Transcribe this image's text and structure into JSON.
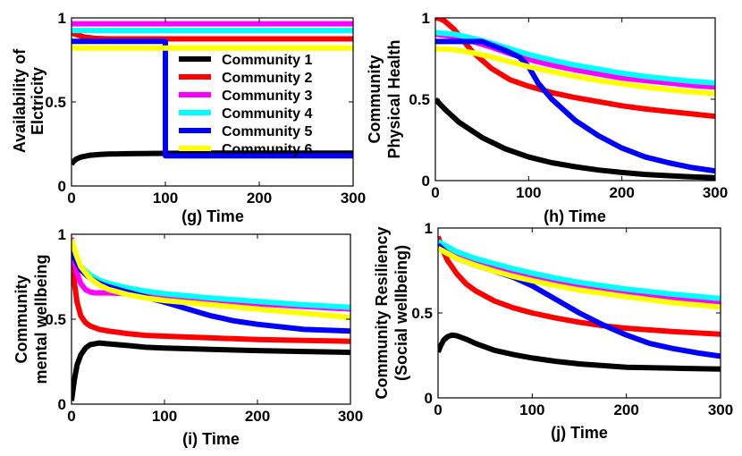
{
  "chart_data": [
    {
      "type": "line",
      "xlabel": "(g) Time",
      "ylabel": "Availability of Elctricity",
      "ylabel_lines": [
        "Availability of",
        "Elctricity"
      ],
      "xlim": [
        0,
        300
      ],
      "ylim": [
        0,
        1
      ],
      "xticks": [
        0,
        100,
        200,
        300
      ],
      "yticks": [
        0,
        0.5,
        1
      ],
      "yticklabels": [
        "0",
        "0.5",
        "1"
      ],
      "grid": false,
      "legend": {
        "placement": "center-right",
        "entries": [
          "Community 1",
          "Community 2",
          "Community 3",
          "Community 4",
          "Community 5",
          "Community 6"
        ]
      },
      "series": [
        {
          "name": "Community 1",
          "color": "#000000",
          "x": [
            0,
            2,
            5,
            10,
            20,
            30,
            40,
            60,
            100,
            150,
            200,
            300
          ],
          "y": [
            0.13,
            0.145,
            0.16,
            0.172,
            0.183,
            0.188,
            0.19,
            0.192,
            0.194,
            0.195,
            0.195,
            0.195
          ]
        },
        {
          "name": "Community 2",
          "color": "#ff0000",
          "x": [
            0,
            3,
            8,
            15,
            25,
            40,
            300
          ],
          "y": [
            0.91,
            0.905,
            0.895,
            0.885,
            0.878,
            0.875,
            0.875
          ]
        },
        {
          "name": "Community 3",
          "color": "#ff00ff",
          "x": [
            0,
            300
          ],
          "y": [
            0.965,
            0.965
          ]
        },
        {
          "name": "Community 4",
          "color": "#00ffff",
          "x": [
            0,
            300
          ],
          "y": [
            0.925,
            0.925
          ]
        },
        {
          "name": "Community 5",
          "color": "#0000ff",
          "x": [
            0,
            100,
            100,
            300
          ],
          "y": [
            0.86,
            0.86,
            0.18,
            0.18
          ]
        },
        {
          "name": "Community 6",
          "color": "#ffff00",
          "x": [
            0,
            300
          ],
          "y": [
            0.82,
            0.82
          ]
        }
      ]
    },
    {
      "type": "line",
      "xlabel": "(h) Time",
      "ylabel": "Community Physical Health",
      "ylabel_lines": [
        "Community",
        "Physical Health"
      ],
      "xlim": [
        0,
        300
      ],
      "ylim": [
        0,
        1
      ],
      "xticks": [
        0,
        100,
        200,
        300
      ],
      "yticks": [
        0,
        0.5,
        1
      ],
      "yticklabels": [
        "0",
        "0.5",
        "1"
      ],
      "grid": false,
      "series": [
        {
          "name": "Community 1",
          "color": "#000000",
          "x": [
            0,
            10,
            25,
            50,
            75,
            100,
            125,
            150,
            175,
            200,
            225,
            250,
            275,
            300
          ],
          "y": [
            0.5,
            0.44,
            0.36,
            0.265,
            0.195,
            0.145,
            0.11,
            0.085,
            0.065,
            0.05,
            0.038,
            0.03,
            0.023,
            0.018
          ]
        },
        {
          "name": "Community 2",
          "color": "#ff0000",
          "x": [
            0,
            5,
            10,
            20,
            30,
            40,
            60,
            80,
            100,
            125,
            150,
            175,
            200,
            225,
            250,
            275,
            300
          ],
          "y": [
            1.0,
            0.995,
            0.98,
            0.93,
            0.86,
            0.79,
            0.69,
            0.62,
            0.58,
            0.54,
            0.51,
            0.485,
            0.46,
            0.44,
            0.425,
            0.41,
            0.395
          ]
        },
        {
          "name": "Community 3",
          "color": "#ff00ff",
          "x": [
            0,
            20,
            40,
            60,
            80,
            100,
            125,
            150,
            175,
            200,
            225,
            250,
            275,
            300
          ],
          "y": [
            0.9,
            0.885,
            0.855,
            0.82,
            0.78,
            0.745,
            0.71,
            0.68,
            0.655,
            0.63,
            0.615,
            0.6,
            0.585,
            0.575
          ]
        },
        {
          "name": "Community 4",
          "color": "#00ffff",
          "x": [
            0,
            20,
            40,
            60,
            80,
            100,
            125,
            150,
            175,
            200,
            225,
            250,
            275,
            300
          ],
          "y": [
            0.91,
            0.9,
            0.875,
            0.845,
            0.81,
            0.775,
            0.74,
            0.71,
            0.685,
            0.66,
            0.64,
            0.625,
            0.61,
            0.6
          ]
        },
        {
          "name": "Community 5",
          "color": "#0000ff",
          "x": [
            0,
            50,
            75,
            90,
            100,
            110,
            125,
            150,
            175,
            200,
            225,
            250,
            275,
            300
          ],
          "y": [
            0.855,
            0.855,
            0.8,
            0.76,
            0.7,
            0.6,
            0.5,
            0.37,
            0.275,
            0.2,
            0.145,
            0.11,
            0.08,
            0.06
          ]
        },
        {
          "name": "Community 6",
          "color": "#ffff00",
          "x": [
            0,
            20,
            40,
            60,
            80,
            100,
            125,
            150,
            175,
            200,
            225,
            250,
            275,
            300
          ],
          "y": [
            0.81,
            0.805,
            0.785,
            0.76,
            0.73,
            0.7,
            0.67,
            0.64,
            0.615,
            0.595,
            0.575,
            0.56,
            0.545,
            0.535
          ]
        }
      ]
    },
    {
      "type": "line",
      "xlabel": "(i) Time",
      "ylabel": "Community mental wellbeing",
      "ylabel_lines": [
        "Community",
        "mental wellbeing"
      ],
      "xlim": [
        0,
        300
      ],
      "ylim": [
        0,
        1
      ],
      "xticks": [
        0,
        100,
        200,
        300
      ],
      "yticks": [
        0,
        0.5,
        1
      ],
      "yticklabels": [
        "0",
        "0.5",
        "1"
      ],
      "grid": false,
      "series": [
        {
          "name": "Community 1",
          "color": "#000000",
          "x": [
            0,
            3,
            6,
            10,
            15,
            20,
            30,
            40,
            60,
            80,
            100,
            150,
            200,
            250,
            300
          ],
          "y": [
            0.02,
            0.14,
            0.23,
            0.29,
            0.33,
            0.35,
            0.36,
            0.355,
            0.345,
            0.335,
            0.33,
            0.322,
            0.315,
            0.31,
            0.305
          ]
        },
        {
          "name": "Community 2",
          "color": "#ff0000",
          "x": [
            0,
            3,
            6,
            10,
            15,
            20,
            30,
            40,
            60,
            80,
            100,
            150,
            200,
            250,
            300
          ],
          "y": [
            0.9,
            0.72,
            0.6,
            0.52,
            0.48,
            0.46,
            0.44,
            0.43,
            0.415,
            0.405,
            0.4,
            0.39,
            0.38,
            0.375,
            0.37
          ]
        },
        {
          "name": "Community 3",
          "color": "#ff00ff",
          "x": [
            0,
            3,
            6,
            10,
            15,
            20,
            25,
            30,
            40,
            60,
            80,
            100,
            150,
            200,
            250,
            300
          ],
          "y": [
            0.98,
            0.85,
            0.77,
            0.71,
            0.675,
            0.66,
            0.655,
            0.655,
            0.655,
            0.65,
            0.64,
            0.63,
            0.61,
            0.59,
            0.575,
            0.56
          ]
        },
        {
          "name": "Community 4",
          "color": "#00ffff",
          "x": [
            0,
            5,
            10,
            20,
            30,
            40,
            60,
            80,
            100,
            150,
            200,
            250,
            300
          ],
          "y": [
            0.92,
            0.86,
            0.81,
            0.76,
            0.73,
            0.71,
            0.685,
            0.665,
            0.65,
            0.625,
            0.605,
            0.585,
            0.57
          ]
        },
        {
          "name": "Community 5",
          "color": "#0000ff",
          "x": [
            0,
            5,
            10,
            20,
            30,
            40,
            60,
            80,
            100,
            125,
            150,
            175,
            200,
            250,
            300
          ],
          "y": [
            0.9,
            0.84,
            0.79,
            0.74,
            0.71,
            0.69,
            0.66,
            0.63,
            0.6,
            0.56,
            0.52,
            0.49,
            0.47,
            0.44,
            0.43
          ]
        },
        {
          "name": "Community 6",
          "color": "#ffff00",
          "x": [
            0,
            5,
            10,
            20,
            30,
            40,
            60,
            80,
            100,
            150,
            200,
            250,
            300
          ],
          "y": [
            0.97,
            0.88,
            0.81,
            0.74,
            0.7,
            0.675,
            0.645,
            0.625,
            0.61,
            0.585,
            0.56,
            0.535,
            0.51
          ]
        }
      ]
    },
    {
      "type": "line",
      "xlabel": "(j) Time",
      "ylabel": "Community Resiliency (Social wellbeing)",
      "ylabel_lines": [
        "Community Resiliency",
        "(Social wellbeing)"
      ],
      "xlim": [
        0,
        300
      ],
      "ylim": [
        0,
        1
      ],
      "xticks": [
        0,
        100,
        200,
        300
      ],
      "yticks": [
        0,
        0.5,
        1
      ],
      "yticklabels": [
        "0",
        "0.5",
        "1"
      ],
      "grid": false,
      "series": [
        {
          "name": "Community 1",
          "color": "#000000",
          "x": [
            0,
            3,
            6,
            10,
            15,
            20,
            30,
            40,
            60,
            80,
            100,
            125,
            150,
            175,
            200,
            250,
            300
          ],
          "y": [
            0.27,
            0.31,
            0.34,
            0.36,
            0.37,
            0.365,
            0.345,
            0.32,
            0.28,
            0.255,
            0.235,
            0.215,
            0.2,
            0.19,
            0.18,
            0.175,
            0.17
          ]
        },
        {
          "name": "Community 2",
          "color": "#ff0000",
          "x": [
            0,
            5,
            10,
            20,
            30,
            40,
            60,
            80,
            100,
            125,
            150,
            175,
            200,
            250,
            300
          ],
          "y": [
            0.95,
            0.87,
            0.81,
            0.73,
            0.67,
            0.63,
            0.57,
            0.53,
            0.5,
            0.47,
            0.445,
            0.425,
            0.41,
            0.39,
            0.375
          ]
        },
        {
          "name": "Community 3",
          "color": "#ff00ff",
          "x": [
            0,
            20,
            40,
            60,
            80,
            100,
            125,
            150,
            175,
            200,
            250,
            300
          ],
          "y": [
            0.9,
            0.84,
            0.8,
            0.77,
            0.74,
            0.71,
            0.68,
            0.655,
            0.635,
            0.615,
            0.585,
            0.56
          ]
        },
        {
          "name": "Community 4",
          "color": "#00ffff",
          "x": [
            0,
            20,
            40,
            60,
            80,
            100,
            125,
            150,
            175,
            200,
            250,
            300
          ],
          "y": [
            0.92,
            0.86,
            0.82,
            0.79,
            0.76,
            0.735,
            0.705,
            0.68,
            0.66,
            0.64,
            0.61,
            0.585
          ]
        },
        {
          "name": "Community 5",
          "color": "#0000ff",
          "x": [
            0,
            10,
            20,
            40,
            60,
            80,
            100,
            125,
            150,
            175,
            200,
            225,
            250,
            275,
            300
          ],
          "y": [
            0.9,
            0.85,
            0.82,
            0.78,
            0.745,
            0.71,
            0.66,
            0.58,
            0.5,
            0.43,
            0.37,
            0.32,
            0.29,
            0.265,
            0.245
          ]
        },
        {
          "name": "Community 6",
          "color": "#ffff00",
          "x": [
            0,
            20,
            40,
            60,
            80,
            100,
            125,
            150,
            175,
            200,
            250,
            300
          ],
          "y": [
            0.88,
            0.82,
            0.78,
            0.745,
            0.715,
            0.69,
            0.66,
            0.635,
            0.615,
            0.595,
            0.56,
            0.535
          ]
        }
      ]
    }
  ]
}
